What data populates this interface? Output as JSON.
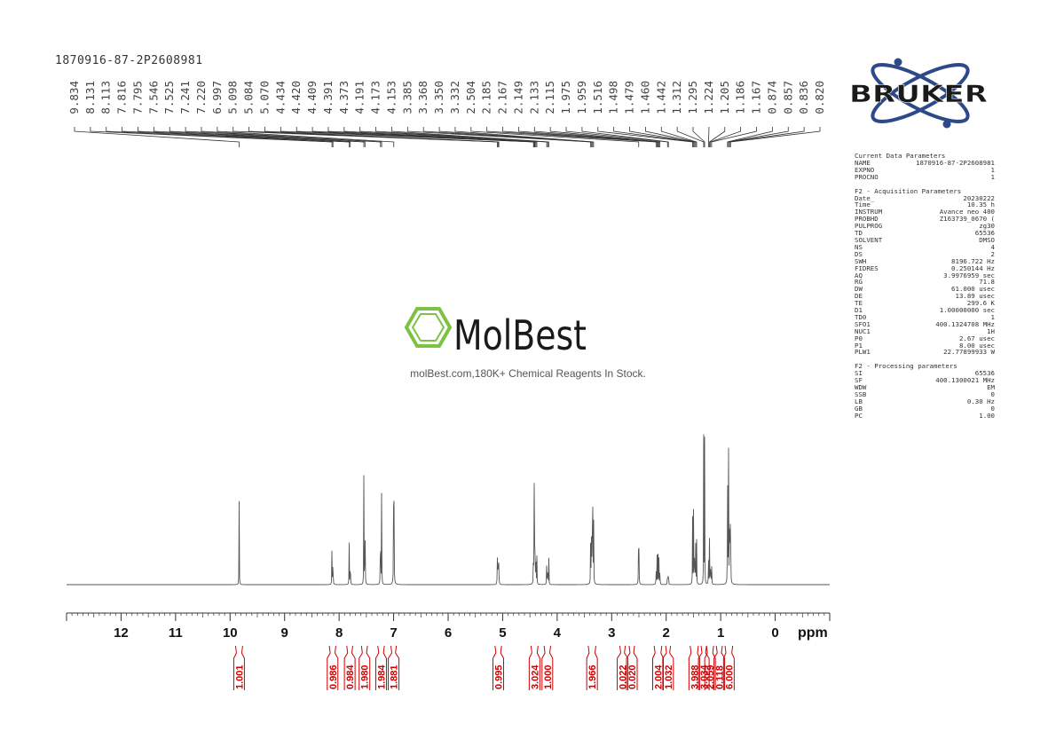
{
  "header": {
    "sample_name": "1870916-87-2P2608981"
  },
  "brand": {
    "logo_text": "BRUKER",
    "logo_color": "#1a1a1a",
    "orbit_color": "#2c4a8a",
    "watermark_brand": "MolBest",
    "watermark_tagline": "molBest.com,180K+ Chemical Reagents In Stock.",
    "watermark_color": "#7dc242"
  },
  "parameters": {
    "current_title": "Current Data Parameters",
    "current": [
      [
        "NAME",
        "1870916-87-2P2608981"
      ],
      [
        "EXPNO",
        "1"
      ],
      [
        "PROCNO",
        "1"
      ]
    ],
    "acq_title": "F2 - Acquisition Parameters",
    "acq": [
      [
        "Date_",
        "20230222"
      ],
      [
        "Time",
        "10.35 h"
      ],
      [
        "INSTRUM",
        "Avance neo 400"
      ],
      [
        "PROBHD",
        "Z163739_0670 ("
      ],
      [
        "PULPROG",
        "zg30"
      ],
      [
        "TD",
        "65536"
      ],
      [
        "SOLVENT",
        "DMSO"
      ],
      [
        "NS",
        "4"
      ],
      [
        "DS",
        "2"
      ],
      [
        "SWH",
        "8196.722 Hz"
      ],
      [
        "FIDRES",
        "0.250144 Hz"
      ],
      [
        "AQ",
        "3.9976959 sec"
      ],
      [
        "RG",
        "71.8"
      ],
      [
        "DW",
        "61.000 usec"
      ],
      [
        "DE",
        "13.89 usec"
      ],
      [
        "TE",
        "299.6 K"
      ],
      [
        "D1",
        "1.00000000 sec"
      ],
      [
        "TD0",
        "1"
      ],
      [
        "SFO1",
        "400.1324708 MHz"
      ],
      [
        "NUC1",
        "1H"
      ],
      [
        "P0",
        "2.67 usec"
      ],
      [
        "P1",
        "8.00 usec"
      ],
      [
        "PLW1",
        "22.77899933 W"
      ]
    ],
    "proc_title": "F2 - Processing parameters",
    "proc": [
      [
        "SI",
        "65536"
      ],
      [
        "SF",
        "400.1300021 MHz"
      ],
      [
        "WDW",
        "EM"
      ],
      [
        "SSB",
        "0"
      ],
      [
        "LB",
        "0.30 Hz"
      ],
      [
        "GB",
        "0"
      ],
      [
        "PC",
        "1.00"
      ]
    ]
  },
  "chart_data": {
    "type": "line",
    "xlabel": "ppm",
    "xlim": [
      13.0,
      -1.0
    ],
    "x_reversed": true,
    "x_ticks": [
      "12",
      "11",
      "10",
      "9",
      "8",
      "7",
      "6",
      "5",
      "4",
      "3",
      "2",
      "1",
      "0"
    ],
    "line_color": "#555555",
    "integral_color": "#cc0000",
    "peak_labels": [
      "9.834",
      "8.131",
      "8.113",
      "7.816",
      "7.795",
      "7.546",
      "7.525",
      "7.241",
      "7.220",
      "6.997",
      "5.098",
      "5.084",
      "5.070",
      "4.434",
      "4.420",
      "4.409",
      "4.391",
      "4.373",
      "4.191",
      "4.173",
      "4.153",
      "3.385",
      "3.368",
      "3.350",
      "3.332",
      "2.504",
      "2.185",
      "2.167",
      "2.149",
      "2.133",
      "2.115",
      "1.975",
      "1.959",
      "1.516",
      "1.498",
      "1.479",
      "1.460",
      "1.442",
      "1.312",
      "1.295",
      "1.224",
      "1.205",
      "1.186",
      "1.167",
      "0.874",
      "0.857",
      "0.836",
      "0.820"
    ],
    "peaks": [
      {
        "ppm": 9.834,
        "height": 0.27
      },
      {
        "ppm": 8.131,
        "height": 0.15
      },
      {
        "ppm": 8.113,
        "height": 0.15
      },
      {
        "ppm": 7.816,
        "height": 0.15
      },
      {
        "ppm": 7.795,
        "height": 0.14
      },
      {
        "ppm": 7.546,
        "height": 0.36
      },
      {
        "ppm": 7.525,
        "height": 0.34
      },
      {
        "ppm": 7.241,
        "height": 0.35
      },
      {
        "ppm": 7.22,
        "height": 0.33
      },
      {
        "ppm": 6.997,
        "height": 1.0
      },
      {
        "ppm": 5.098,
        "height": 0.11
      },
      {
        "ppm": 5.084,
        "height": 0.17
      },
      {
        "ppm": 5.07,
        "height": 0.11
      },
      {
        "ppm": 4.434,
        "height": 0.17
      },
      {
        "ppm": 4.42,
        "height": 0.35
      },
      {
        "ppm": 4.409,
        "height": 0.33
      },
      {
        "ppm": 4.391,
        "height": 0.14
      },
      {
        "ppm": 4.373,
        "height": 0.1
      },
      {
        "ppm": 4.191,
        "height": 0.1
      },
      {
        "ppm": 4.173,
        "height": 0.12
      },
      {
        "ppm": 4.153,
        "height": 0.09
      },
      {
        "ppm": 3.385,
        "height": 0.23
      },
      {
        "ppm": 3.368,
        "height": 0.34
      },
      {
        "ppm": 3.35,
        "height": 0.73
      },
      {
        "ppm": 3.332,
        "height": 0.3
      },
      {
        "ppm": 2.504,
        "height": 0.44
      },
      {
        "ppm": 2.185,
        "height": 0.08
      },
      {
        "ppm": 2.167,
        "height": 0.1
      },
      {
        "ppm": 2.149,
        "height": 0.11
      },
      {
        "ppm": 2.133,
        "height": 0.09
      },
      {
        "ppm": 2.115,
        "height": 0.07
      },
      {
        "ppm": 1.975,
        "height": 0.07
      },
      {
        "ppm": 1.959,
        "height": 0.08
      },
      {
        "ppm": 1.516,
        "height": 0.24
      },
      {
        "ppm": 1.498,
        "height": 0.26
      },
      {
        "ppm": 1.479,
        "height": 0.24
      },
      {
        "ppm": 1.46,
        "height": 0.2
      },
      {
        "ppm": 1.442,
        "height": 0.14
      },
      {
        "ppm": 1.312,
        "height": 0.48
      },
      {
        "ppm": 1.295,
        "height": 0.47
      },
      {
        "ppm": 1.224,
        "height": 0.12
      },
      {
        "ppm": 1.205,
        "height": 0.16
      },
      {
        "ppm": 1.186,
        "height": 0.14
      },
      {
        "ppm": 1.167,
        "height": 0.09
      },
      {
        "ppm": 0.874,
        "height": 0.49
      },
      {
        "ppm": 0.857,
        "height": 0.52
      },
      {
        "ppm": 0.836,
        "height": 0.5
      },
      {
        "ppm": 0.82,
        "height": 0.49
      }
    ],
    "integrals": [
      {
        "value": "1.001",
        "start": 9.9,
        "end": 9.77
      },
      {
        "value": "0.986",
        "start": 8.18,
        "end": 8.06
      },
      {
        "value": "0.984",
        "start": 7.86,
        "end": 7.75
      },
      {
        "value": "1.980",
        "start": 7.59,
        "end": 7.48
      },
      {
        "value": "1.984",
        "start": 7.29,
        "end": 7.17
      },
      {
        "value": "1.881",
        "start": 7.05,
        "end": 6.95
      },
      {
        "value": "0.995",
        "start": 5.14,
        "end": 5.02
      },
      {
        "value": "3.024",
        "start": 4.48,
        "end": 4.35
      },
      {
        "value": "1.000",
        "start": 4.24,
        "end": 4.12
      },
      {
        "value": "1.966",
        "start": 3.43,
        "end": 3.29
      },
      {
        "value": "0.022",
        "start": 2.85,
        "end": 2.75
      },
      {
        "value": "0.020",
        "start": 2.68,
        "end": 2.58
      },
      {
        "value": "2.004",
        "start": 2.22,
        "end": 2.08
      },
      {
        "value": "1.032",
        "start": 2.01,
        "end": 1.92
      },
      {
        "value": "3.988",
        "start": 1.56,
        "end": 1.41
      },
      {
        "value": "3.034",
        "start": 1.36,
        "end": 1.26
      },
      {
        "value": "2.059",
        "start": 1.26,
        "end": 1.13
      },
      {
        "value": "0.118",
        "start": 1.08,
        "end": 0.97
      },
      {
        "value": "6.000",
        "start": 0.92,
        "end": 0.78
      }
    ]
  }
}
